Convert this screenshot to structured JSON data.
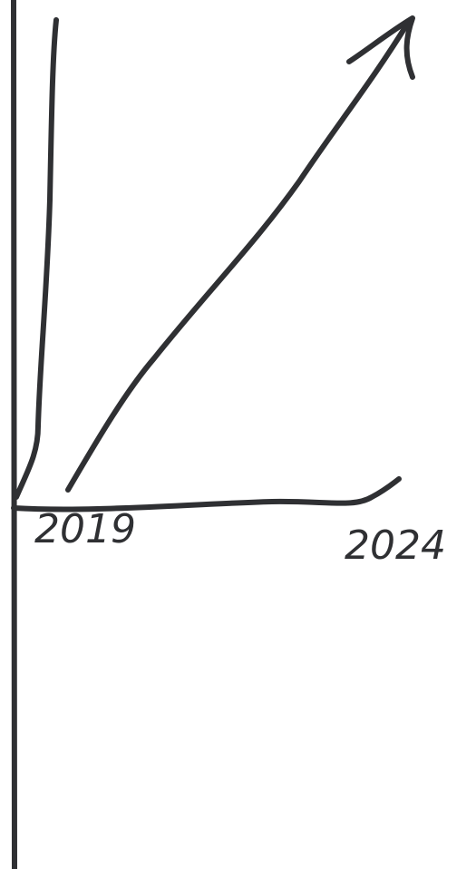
{
  "labels": {
    "start": "2019",
    "end": "2024"
  }
}
